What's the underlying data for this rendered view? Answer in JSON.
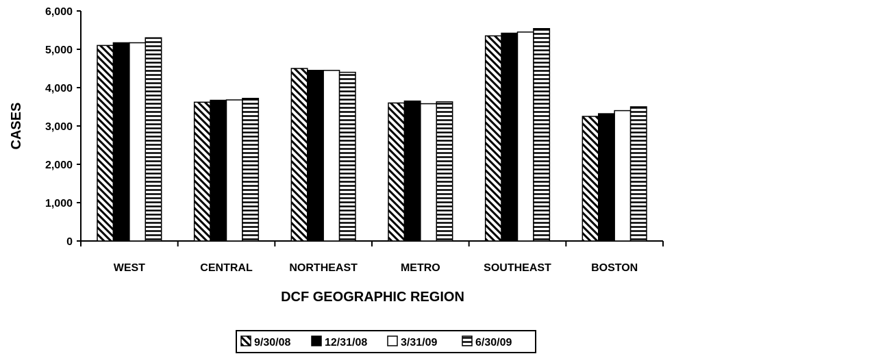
{
  "chart_data": {
    "type": "bar",
    "xlabel": "DCF GEOGRAPHIC REGION",
    "ylabel": "CASES",
    "ylim": [
      0,
      6000
    ],
    "yticks": [
      0,
      1000,
      2000,
      3000,
      4000,
      5000,
      6000
    ],
    "ytick_labels": [
      "0",
      "1,000",
      "2,000",
      "3,000",
      "4,000",
      "5,000",
      "6,000"
    ],
    "categories": [
      "WEST",
      "CENTRAL",
      "NORTHEAST",
      "METRO",
      "SOUTHEAST",
      "BOSTON"
    ],
    "series": [
      {
        "name": "9/30/08",
        "pattern": "diagonal-hatch",
        "values": [
          5100,
          3620,
          4500,
          3600,
          5350,
          3250
        ]
      },
      {
        "name": "12/31/08",
        "pattern": "solid-black",
        "values": [
          5170,
          3670,
          4450,
          3650,
          5420,
          3320
        ]
      },
      {
        "name": "3/31/09",
        "pattern": "white",
        "values": [
          5170,
          3680,
          4450,
          3580,
          5450,
          3400
        ]
      },
      {
        "name": "6/30/09",
        "pattern": "horizontal-lines",
        "values": [
          5300,
          3720,
          4400,
          3630,
          5540,
          3500
        ]
      }
    ],
    "legend_position": "bottom-center",
    "grid": false
  }
}
